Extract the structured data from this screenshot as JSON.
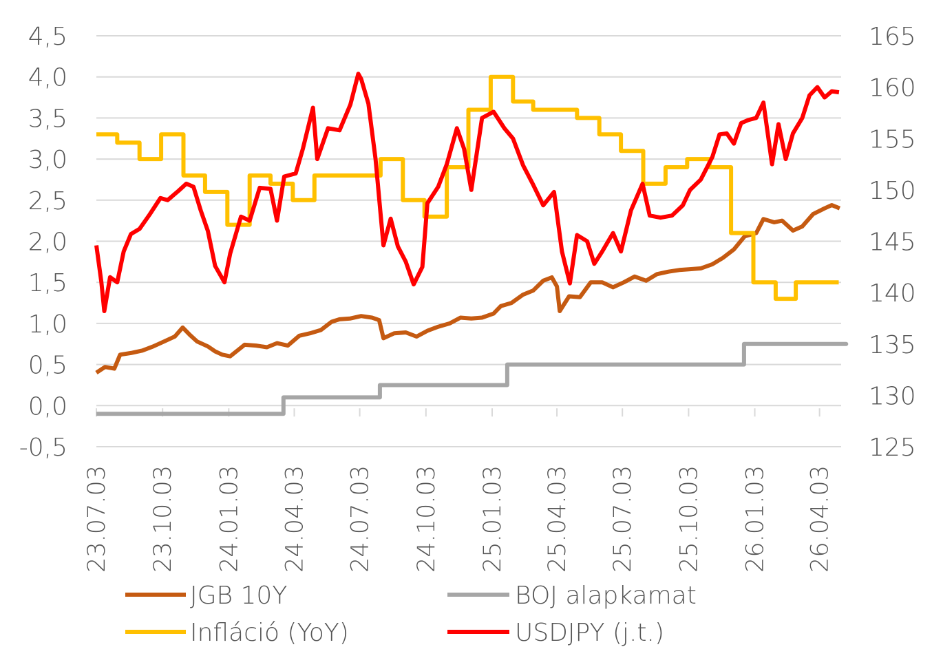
{
  "chart_data": {
    "type": "line",
    "x_tick_labels": [
      "23.07.03",
      "23.10.03",
      "24.01.03",
      "24.04.03",
      "24.07.03",
      "24.10.03",
      "25.01.03",
      "25.04.03",
      "25.07.03",
      "25.10.03",
      "26.01.03",
      "26.04.03"
    ],
    "x_range": [
      "2023-07-03",
      "2026-05-03"
    ],
    "y_left": {
      "ticks": [
        "4,5",
        "4,0",
        "3,5",
        "3,0",
        "2,5",
        "2,0",
        "1,5",
        "1,0",
        "0,5",
        "0,0",
        "-0,5"
      ],
      "range": [
        -0.5,
        4.5
      ]
    },
    "y_right": {
      "ticks": [
        "165",
        "160",
        "155",
        "150",
        "145",
        "140",
        "135",
        "130",
        "125"
      ],
      "range": [
        125,
        165
      ]
    },
    "grid": "horizontal",
    "legend_position": "bottom",
    "series": [
      {
        "name": "JGB 10Y",
        "axis": "left",
        "color": "#C55A11",
        "points": [
          [
            "2023-07-03",
            0.4
          ],
          [
            "2023-07-15",
            0.47
          ],
          [
            "2023-07-28",
            0.45
          ],
          [
            "2023-08-05",
            0.62
          ],
          [
            "2023-08-20",
            0.64
          ],
          [
            "2023-09-05",
            0.67
          ],
          [
            "2023-09-20",
            0.72
          ],
          [
            "2023-10-05",
            0.78
          ],
          [
            "2023-10-20",
            0.84
          ],
          [
            "2023-10-31",
            0.95
          ],
          [
            "2023-11-10",
            0.86
          ],
          [
            "2023-11-20",
            0.78
          ],
          [
            "2023-12-05",
            0.72
          ],
          [
            "2023-12-15",
            0.66
          ],
          [
            "2023-12-25",
            0.62
          ],
          [
            "2024-01-05",
            0.6
          ],
          [
            "2024-01-15",
            0.67
          ],
          [
            "2024-01-25",
            0.74
          ],
          [
            "2024-02-10",
            0.73
          ],
          [
            "2024-02-25",
            0.71
          ],
          [
            "2024-03-10",
            0.76
          ],
          [
            "2024-03-25",
            0.73
          ],
          [
            "2024-04-10",
            0.85
          ],
          [
            "2024-04-25",
            0.88
          ],
          [
            "2024-05-10",
            0.92
          ],
          [
            "2024-05-25",
            1.02
          ],
          [
            "2024-06-05",
            1.05
          ],
          [
            "2024-06-20",
            1.06
          ],
          [
            "2024-07-05",
            1.09
          ],
          [
            "2024-07-20",
            1.07
          ],
          [
            "2024-07-30",
            1.04
          ],
          [
            "2024-08-05",
            0.82
          ],
          [
            "2024-08-20",
            0.88
          ],
          [
            "2024-09-05",
            0.89
          ],
          [
            "2024-09-20",
            0.84
          ],
          [
            "2024-10-05",
            0.91
          ],
          [
            "2024-10-20",
            0.96
          ],
          [
            "2024-11-05",
            1.0
          ],
          [
            "2024-11-20",
            1.07
          ],
          [
            "2024-12-05",
            1.06
          ],
          [
            "2024-12-20",
            1.07
          ],
          [
            "2025-01-05",
            1.12
          ],
          [
            "2025-01-15",
            1.21
          ],
          [
            "2025-01-30",
            1.25
          ],
          [
            "2025-02-15",
            1.35
          ],
          [
            "2025-03-01",
            1.4
          ],
          [
            "2025-03-15",
            1.52
          ],
          [
            "2025-03-27",
            1.56
          ],
          [
            "2025-04-03",
            1.45
          ],
          [
            "2025-04-07",
            1.15
          ],
          [
            "2025-04-20",
            1.33
          ],
          [
            "2025-05-05",
            1.32
          ],
          [
            "2025-05-20",
            1.5
          ],
          [
            "2025-06-05",
            1.5
          ],
          [
            "2025-06-20",
            1.44
          ],
          [
            "2025-07-05",
            1.5
          ],
          [
            "2025-07-20",
            1.57
          ],
          [
            "2025-08-05",
            1.52
          ],
          [
            "2025-08-20",
            1.6
          ],
          [
            "2025-09-05",
            1.63
          ],
          [
            "2025-09-20",
            1.65
          ],
          [
            "2025-10-05",
            1.66
          ],
          [
            "2025-10-20",
            1.67
          ],
          [
            "2025-11-05",
            1.72
          ],
          [
            "2025-11-20",
            1.8
          ],
          [
            "2025-12-05",
            1.9
          ],
          [
            "2025-12-20",
            2.06
          ],
          [
            "2026-01-05",
            2.1
          ],
          [
            "2026-01-15",
            2.27
          ],
          [
            "2026-01-30",
            2.23
          ],
          [
            "2026-02-10",
            2.25
          ],
          [
            "2026-02-25",
            2.13
          ],
          [
            "2026-03-10",
            2.18
          ],
          [
            "2026-03-25",
            2.33
          ],
          [
            "2026-04-10",
            2.4
          ],
          [
            "2026-04-20",
            2.44
          ],
          [
            "2026-05-01",
            2.4
          ]
        ]
      },
      {
        "name": "BOJ alapkamat",
        "axis": "left",
        "color": "#A6A6A6",
        "step": true,
        "points": [
          [
            "2023-07-03",
            -0.1
          ],
          [
            "2024-03-19",
            0.1
          ],
          [
            "2024-07-31",
            0.25
          ],
          [
            "2025-01-24",
            0.5
          ],
          [
            "2025-12-19",
            0.75
          ],
          [
            "2026-05-10",
            0.75
          ]
        ]
      },
      {
        "name": "Infláció (YoY)",
        "axis": "left",
        "color": "#FFC000",
        "step": true,
        "points": [
          [
            "2023-07-03",
            3.3
          ],
          [
            "2023-08-01",
            3.2
          ],
          [
            "2023-09-01",
            3.0
          ],
          [
            "2023-10-01",
            3.3
          ],
          [
            "2023-11-01",
            2.8
          ],
          [
            "2023-12-01",
            2.6
          ],
          [
            "2024-01-01",
            2.2
          ],
          [
            "2024-02-01",
            2.8
          ],
          [
            "2024-03-01",
            2.7
          ],
          [
            "2024-04-01",
            2.5
          ],
          [
            "2024-05-01",
            2.8
          ],
          [
            "2024-08-01",
            3.0
          ],
          [
            "2024-09-01",
            2.5
          ],
          [
            "2024-10-01",
            2.3
          ],
          [
            "2024-11-01",
            2.9
          ],
          [
            "2024-12-01",
            3.6
          ],
          [
            "2025-01-01",
            4.0
          ],
          [
            "2025-02-01",
            3.7
          ],
          [
            "2025-03-01",
            3.6
          ],
          [
            "2025-05-01",
            3.5
          ],
          [
            "2025-06-01",
            3.3
          ],
          [
            "2025-07-01",
            3.1
          ],
          [
            "2025-08-01",
            2.7
          ],
          [
            "2025-09-01",
            2.9
          ],
          [
            "2025-10-01",
            3.0
          ],
          [
            "2025-11-01",
            2.9
          ],
          [
            "2025-12-01",
            2.1
          ],
          [
            "2026-01-01",
            1.5
          ],
          [
            "2026-02-01",
            1.3
          ],
          [
            "2026-03-01",
            1.5
          ],
          [
            "2026-04-01",
            1.5
          ]
        ]
      },
      {
        "name": "USDJPY (j.t.)",
        "axis": "right",
        "color": "#FF0000",
        "points": [
          [
            "2023-07-03",
            144.6
          ],
          [
            "2023-07-10",
            141.0
          ],
          [
            "2023-07-14",
            138.2
          ],
          [
            "2023-07-22",
            141.5
          ],
          [
            "2023-08-01",
            141.0
          ],
          [
            "2023-08-10",
            144.0
          ],
          [
            "2023-08-20",
            145.7
          ],
          [
            "2023-09-01",
            146.2
          ],
          [
            "2023-09-15",
            147.6
          ],
          [
            "2023-09-30",
            149.2
          ],
          [
            "2023-10-10",
            149.0
          ],
          [
            "2023-10-25",
            149.9
          ],
          [
            "2023-11-05",
            150.6
          ],
          [
            "2023-11-15",
            150.3
          ],
          [
            "2023-11-25",
            148.0
          ],
          [
            "2023-12-05",
            146.0
          ],
          [
            "2023-12-15",
            142.6
          ],
          [
            "2023-12-28",
            141.0
          ],
          [
            "2024-01-05",
            143.8
          ],
          [
            "2024-01-20",
            147.4
          ],
          [
            "2024-02-01",
            147.0
          ],
          [
            "2024-02-15",
            150.2
          ],
          [
            "2024-03-01",
            150.1
          ],
          [
            "2024-03-10",
            147.0
          ],
          [
            "2024-03-20",
            151.3
          ],
          [
            "2024-04-05",
            151.6
          ],
          [
            "2024-04-15",
            154.0
          ],
          [
            "2024-04-29",
            158.0
          ],
          [
            "2024-05-05",
            153.0
          ],
          [
            "2024-05-20",
            156.0
          ],
          [
            "2024-06-05",
            155.8
          ],
          [
            "2024-06-20",
            158.3
          ],
          [
            "2024-07-01",
            161.3
          ],
          [
            "2024-07-05",
            160.8
          ],
          [
            "2024-07-15",
            158.4
          ],
          [
            "2024-07-25",
            153.0
          ],
          [
            "2024-08-05",
            144.6
          ],
          [
            "2024-08-15",
            147.2
          ],
          [
            "2024-08-25",
            144.5
          ],
          [
            "2024-09-05",
            143.0
          ],
          [
            "2024-09-16",
            140.8
          ],
          [
            "2024-09-28",
            142.5
          ],
          [
            "2024-10-05",
            148.7
          ],
          [
            "2024-10-20",
            150.3
          ],
          [
            "2024-11-01",
            152.5
          ],
          [
            "2024-11-15",
            156.0
          ],
          [
            "2024-11-25",
            154.0
          ],
          [
            "2024-12-05",
            150.0
          ],
          [
            "2024-12-20",
            157.0
          ],
          [
            "2025-01-05",
            157.6
          ],
          [
            "2025-01-20",
            156.0
          ],
          [
            "2025-02-01",
            155.0
          ],
          [
            "2025-02-15",
            152.4
          ],
          [
            "2025-03-01",
            150.5
          ],
          [
            "2025-03-15",
            148.5
          ],
          [
            "2025-03-30",
            149.8
          ],
          [
            "2025-04-10",
            144.0
          ],
          [
            "2025-04-21",
            140.9
          ],
          [
            "2025-05-01",
            145.6
          ],
          [
            "2025-05-15",
            145.0
          ],
          [
            "2025-05-25",
            142.8
          ],
          [
            "2025-06-05",
            144.0
          ],
          [
            "2025-06-20",
            145.8
          ],
          [
            "2025-07-01",
            144.0
          ],
          [
            "2025-07-15",
            148.0
          ],
          [
            "2025-07-31",
            150.6
          ],
          [
            "2025-08-10",
            147.5
          ],
          [
            "2025-08-25",
            147.3
          ],
          [
            "2025-09-10",
            147.5
          ],
          [
            "2025-09-25",
            148.5
          ],
          [
            "2025-10-05",
            150.0
          ],
          [
            "2025-10-20",
            151.0
          ],
          [
            "2025-11-05",
            153.2
          ],
          [
            "2025-11-15",
            155.4
          ],
          [
            "2025-11-25",
            155.5
          ],
          [
            "2025-12-05",
            154.5
          ],
          [
            "2025-12-15",
            156.5
          ],
          [
            "2025-12-25",
            156.8
          ],
          [
            "2026-01-05",
            157.0
          ],
          [
            "2026-01-15",
            158.5
          ],
          [
            "2026-01-27",
            152.5
          ],
          [
            "2026-02-05",
            156.4
          ],
          [
            "2026-02-15",
            153.0
          ],
          [
            "2026-02-25",
            155.5
          ],
          [
            "2026-03-10",
            157.0
          ],
          [
            "2026-03-20",
            159.2
          ],
          [
            "2026-03-31",
            160.0
          ],
          [
            "2026-04-10",
            159.0
          ],
          [
            "2026-04-20",
            159.6
          ],
          [
            "2026-04-30",
            159.5
          ]
        ]
      }
    ]
  },
  "legend": [
    {
      "label": "JGB 10Y",
      "color": "#C55A11"
    },
    {
      "label": "BOJ alapkamat",
      "color": "#A6A6A6"
    },
    {
      "label": "Infláció (YoY)",
      "color": "#FFC000"
    },
    {
      "label": "USDJPY (j.t.)",
      "color": "#FF0000"
    }
  ],
  "style": {
    "grid_color": "#D9D9D9",
    "text_color": "#555555"
  }
}
